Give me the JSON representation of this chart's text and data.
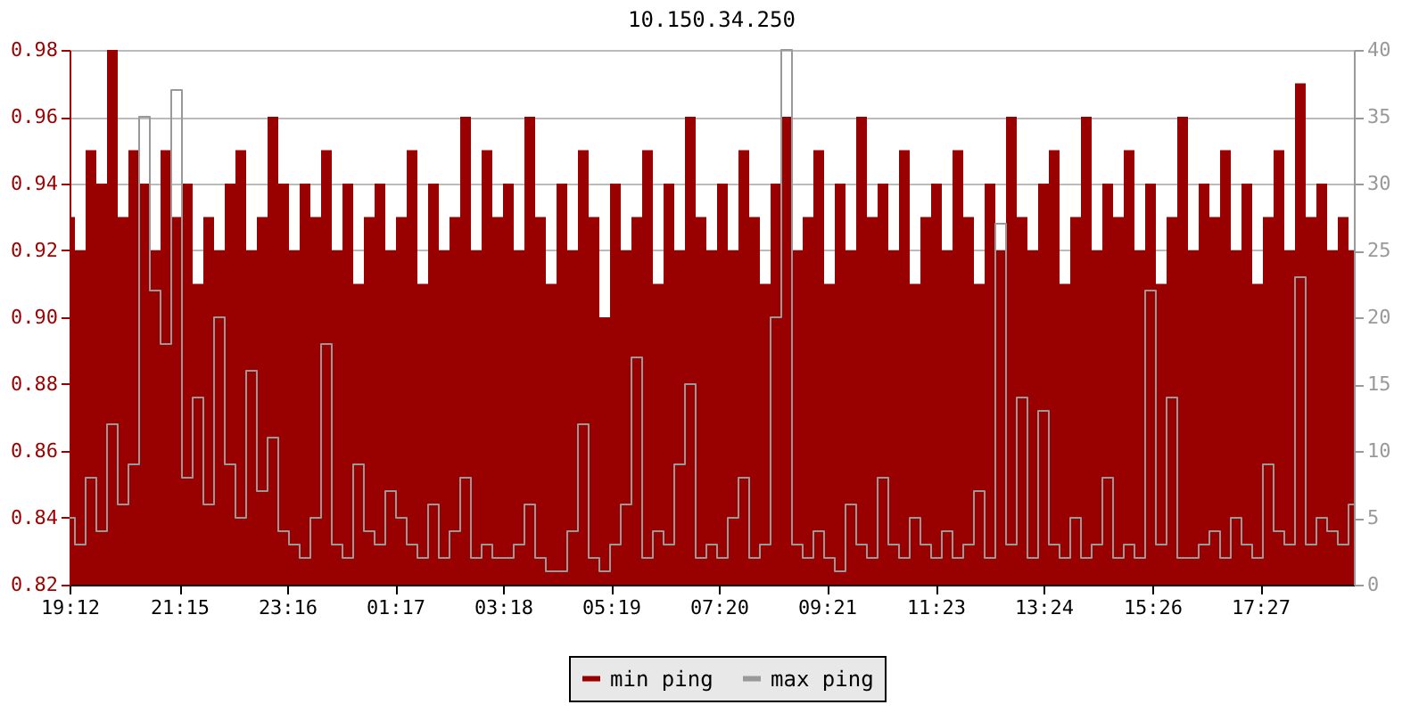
{
  "chart_data": {
    "type": "area",
    "title": "10.150.34.250",
    "x": [
      "--01-01T19:12",
      "--01-01T19:24",
      "--01-01T19:36",
      "--01-01T19:48",
      "--01-01T20:00",
      "--01-01T20:12",
      "--01-01T20:24",
      "--01-01T20:36",
      "--01-01T20:48",
      "--01-01T21:00",
      "--01-01T21:12",
      "--01-01T21:24",
      "--01-01T21:36",
      "--01-01T21:48",
      "--01-01T22:00",
      "--01-01T22:12",
      "--01-01T22:24",
      "--01-01T22:36",
      "--01-01T22:48",
      "--01-01T23:00",
      "--01-01T23:12",
      "--01-01T23:24",
      "--01-01T23:36",
      "--01-01T23:48",
      "--01-02T00:00",
      "--01-02T00:12",
      "--01-02T00:24",
      "--01-02T00:36",
      "--01-02T00:48",
      "--01-02T01:00",
      "--01-02T01:12",
      "--01-02T01:24",
      "--01-02T01:36",
      "--01-02T01:48",
      "--01-02T02:00",
      "--01-02T02:12",
      "--01-02T02:24",
      "--01-02T02:36",
      "--01-02T02:48",
      "--01-02T03:00",
      "--01-02T03:12",
      "--01-02T03:24",
      "--01-02T03:36",
      "--01-02T03:48",
      "--01-02T04:00",
      "--01-02T04:12",
      "--01-02T04:24",
      "--01-02T04:36",
      "--01-02T04:48",
      "--01-02T05:00",
      "--01-02T05:12",
      "--01-02T05:24",
      "--01-02T05:36",
      "--01-02T05:48",
      "--01-02T06:00",
      "--01-02T06:12",
      "--01-02T06:24",
      "--01-02T06:36",
      "--01-02T06:48",
      "--01-02T07:00",
      "--01-02T07:12",
      "--01-02T07:24",
      "--01-02T07:36",
      "--01-02T07:48",
      "--01-02T08:00",
      "--01-02T08:12",
      "--01-02T08:24",
      "--01-02T08:36",
      "--01-02T08:48",
      "--01-02T09:00",
      "--01-02T09:12",
      "--01-02T09:24",
      "--01-02T09:36",
      "--01-02T09:48",
      "--01-02T10:00",
      "--01-02T10:12",
      "--01-02T10:24",
      "--01-02T10:36",
      "--01-02T10:48",
      "--01-02T11:00",
      "--01-02T11:12",
      "--01-02T11:24",
      "--01-02T11:36",
      "--01-02T11:48",
      "--01-02T12:00",
      "--01-02T12:12",
      "--01-02T12:24",
      "--01-02T12:36",
      "--01-02T12:48",
      "--01-02T13:00",
      "--01-02T13:12",
      "--01-02T13:24",
      "--01-02T13:36",
      "--01-02T13:48",
      "--01-02T14:00",
      "--01-02T14:12",
      "--01-02T14:24",
      "--01-02T14:36",
      "--01-02T14:48",
      "--01-02T15:00",
      "--01-02T15:12",
      "--01-02T15:24",
      "--01-02T15:36",
      "--01-02T15:48",
      "--01-02T16:00",
      "--01-02T16:12",
      "--01-02T16:24",
      "--01-02T16:36",
      "--01-02T16:48",
      "--01-02T17:00",
      "--01-02T17:12",
      "--01-02T17:24",
      "--01-02T17:36",
      "--01-02T17:48",
      "--01-02T18:00",
      "--01-02T18:12",
      "--01-02T18:24",
      "--01-02T18:36",
      "--01-02T18:48",
      "--01-02T19:00",
      "--01-02T19:12"
    ],
    "series": [
      {
        "name": "min ping",
        "color": "#990000",
        "values": [
          0.93,
          0.92,
          0.95,
          0.94,
          0.98,
          0.93,
          0.95,
          0.94,
          0.92,
          0.95,
          0.93,
          0.94,
          0.91,
          0.93,
          0.92,
          0.94,
          0.95,
          0.92,
          0.93,
          0.96,
          0.94,
          0.92,
          0.94,
          0.93,
          0.95,
          0.92,
          0.94,
          0.91,
          0.93,
          0.94,
          0.92,
          0.93,
          0.95,
          0.91,
          0.94,
          0.92,
          0.93,
          0.96,
          0.92,
          0.95,
          0.93,
          0.94,
          0.92,
          0.96,
          0.93,
          0.91,
          0.94,
          0.92,
          0.95,
          0.93,
          0.9,
          0.94,
          0.92,
          0.93,
          0.95,
          0.91,
          0.94,
          0.92,
          0.96,
          0.93,
          0.92,
          0.94,
          0.92,
          0.95,
          0.93,
          0.91,
          0.94,
          0.96,
          0.92,
          0.93,
          0.95,
          0.91,
          0.94,
          0.92,
          0.96,
          0.93,
          0.94,
          0.92,
          0.95,
          0.91,
          0.93,
          0.94,
          0.92,
          0.95,
          0.93,
          0.91,
          0.94,
          0.92,
          0.96,
          0.93,
          0.92,
          0.94,
          0.95,
          0.91,
          0.93,
          0.96,
          0.92,
          0.94,
          0.93,
          0.95,
          0.92,
          0.94,
          0.91,
          0.93,
          0.96,
          0.92,
          0.94,
          0.93,
          0.95,
          0.92,
          0.94,
          0.91,
          0.93,
          0.95,
          0.92,
          0.97,
          0.93,
          0.94,
          0.92,
          0.93,
          0.92
        ]
      },
      {
        "name": "max ping",
        "color": "#999999",
        "type": "line",
        "axis": "y2",
        "values": [
          5,
          3,
          8,
          4,
          12,
          6,
          9,
          35,
          22,
          18,
          37,
          8,
          14,
          6,
          20,
          9,
          5,
          16,
          7,
          11,
          4,
          3,
          2,
          5,
          18,
          3,
          2,
          9,
          4,
          3,
          7,
          5,
          3,
          2,
          6,
          2,
          4,
          8,
          2,
          3,
          2,
          2,
          3,
          6,
          2,
          1,
          1,
          4,
          12,
          2,
          1,
          3,
          6,
          17,
          2,
          4,
          3,
          9,
          15,
          2,
          3,
          2,
          5,
          8,
          2,
          3,
          20,
          40,
          3,
          2,
          4,
          2,
          1,
          6,
          3,
          2,
          8,
          3,
          2,
          5,
          3,
          2,
          4,
          2,
          3,
          7,
          2,
          27,
          3,
          14,
          2,
          13,
          3,
          2,
          5,
          2,
          3,
          8,
          2,
          3,
          2,
          22,
          3,
          14,
          2,
          2,
          3,
          4,
          2,
          5,
          3,
          2,
          9,
          4,
          3,
          23,
          3,
          5,
          4,
          3,
          6
        ]
      }
    ],
    "xlim": [
      "--01-01T19:12",
      "--01-02T19:12"
    ],
    "xticks": [
      {
        "value": "--01-01T19:12",
        "label": "19:12"
      },
      {
        "value": "--01-01T21:15",
        "label": "21:15"
      },
      {
        "value": "--01-01T23:16",
        "label": "23:16"
      },
      {
        "value": "--01-02T01:17",
        "label": "01:17"
      },
      {
        "value": "--01-02T03:18",
        "label": "03:18"
      },
      {
        "value": "--01-02T05:19",
        "label": "05:19"
      },
      {
        "value": "--01-02T07:20",
        "label": "07:20"
      },
      {
        "value": "--01-02T09:21",
        "label": "09:21"
      },
      {
        "value": "--01-02T11:23",
        "label": "11:23"
      },
      {
        "value": "--01-02T13:24",
        "label": "13:24"
      },
      {
        "value": "--01-02T15:26",
        "label": "15:26"
      },
      {
        "value": "--01-02T17:27",
        "label": "17:27"
      }
    ],
    "ylim": [
      0.82,
      0.98
    ],
    "yticks": [
      {
        "value": 0.82,
        "label": "0.82"
      },
      {
        "value": 0.84,
        "label": "0.84"
      },
      {
        "value": 0.86,
        "label": "0.86"
      },
      {
        "value": 0.88,
        "label": "0.88"
      },
      {
        "value": 0.9,
        "label": "0.90"
      },
      {
        "value": 0.92,
        "label": "0.92"
      },
      {
        "value": 0.94,
        "label": "0.94"
      },
      {
        "value": 0.96,
        "label": "0.96"
      },
      {
        "value": 0.98,
        "label": "0.98"
      }
    ],
    "y2lim": [
      0,
      40
    ],
    "y2ticks": [
      0,
      5,
      10,
      15,
      20,
      25,
      30,
      35,
      40
    ],
    "grid": "y",
    "legend": "bottom"
  }
}
